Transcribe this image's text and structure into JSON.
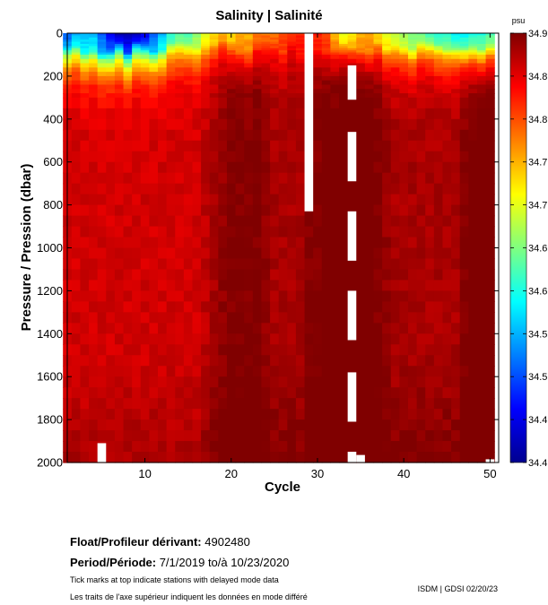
{
  "chart_data": {
    "type": "heatmap",
    "title": "Salinity | Salinité",
    "xlabel": "Cycle",
    "ylabel": "Pressure / Pression (dbar)",
    "xlim": [
      1,
      51
    ],
    "ylim": [
      0,
      2000
    ],
    "y_inverted": true,
    "xticks": [
      10,
      20,
      30,
      40,
      50
    ],
    "yticks": [
      0,
      200,
      400,
      600,
      800,
      1000,
      1200,
      1400,
      1600,
      1800,
      2000
    ],
    "colorbar": {
      "unit": "psu",
      "min": 34.4,
      "max": 34.9,
      "tick_values": [
        34.4,
        34.45,
        34.5,
        34.55,
        34.6,
        34.65,
        34.7,
        34.75,
        34.8,
        34.85,
        34.9
      ],
      "tick_labels": [
        "34.4",
        "34.4",
        "34.5",
        "34.5",
        "34.6",
        "34.6",
        "34.7",
        "34.7",
        "34.8",
        "34.8",
        "34.9"
      ]
    },
    "surface_profile": [
      34.5,
      34.55,
      34.55,
      34.55,
      34.5,
      34.45,
      34.42,
      34.42,
      34.42,
      34.45,
      34.5,
      34.55,
      34.6,
      34.62,
      34.62,
      34.65,
      34.7,
      34.72,
      34.75,
      34.72,
      34.75,
      34.75,
      34.78,
      34.78,
      34.78,
      34.8,
      34.82,
      34.82,
      34.85,
      34.82,
      34.8,
      34.75,
      34.7,
      34.72,
      34.75,
      34.75,
      34.72,
      34.7,
      34.68,
      34.66,
      34.64,
      34.64,
      34.62,
      34.6,
      34.6,
      34.58,
      34.58,
      34.6,
      34.6,
      34.62
    ],
    "deep_profile": [
      34.86,
      34.86,
      34.86,
      34.86,
      34.86,
      34.86,
      34.86,
      34.86,
      34.86,
      34.86,
      34.86,
      34.86,
      34.86,
      34.86,
      34.86,
      34.86,
      34.87,
      34.88,
      34.89,
      34.9,
      34.9,
      34.9,
      34.9,
      34.89,
      34.88,
      34.88,
      34.88,
      34.88,
      34.9,
      34.9,
      34.91,
      34.91,
      34.92,
      34.92,
      34.92,
      34.92,
      34.9,
      34.89,
      34.88,
      34.88,
      34.88,
      34.88,
      34.88,
      34.88,
      34.88,
      34.88,
      34.9,
      34.91,
      34.92,
      34.92
    ],
    "missing": [
      {
        "cycle": 29,
        "pmin": 0,
        "pmax": 830
      },
      {
        "cycle": 34,
        "pmin": 150,
        "pmax": 310
      },
      {
        "cycle": 34,
        "pmin": 460,
        "pmax": 690
      },
      {
        "cycle": 34,
        "pmin": 830,
        "pmax": 1060
      },
      {
        "cycle": 34,
        "pmin": 1200,
        "pmax": 1430
      },
      {
        "cycle": 34,
        "pmin": 1580,
        "pmax": 1810
      },
      {
        "cycle": 34,
        "pmin": 1950,
        "pmax": 2000
      },
      {
        "cycle": 35,
        "pmin": 1965,
        "pmax": 2000
      },
      {
        "cycle": 5,
        "pmin": 1910,
        "pmax": 2000
      },
      {
        "cycle": 50,
        "pmin": 1985,
        "pmax": 2000
      }
    ]
  },
  "float": {
    "label": "Float/Profileur dérivant:",
    "value": "4902480"
  },
  "period": {
    "label": "Period/Période:",
    "start": "7/1/2019",
    "to": "to/à",
    "end": "10/23/2020"
  },
  "notes": {
    "en": "Tick marks at top indicate stations with delayed mode data",
    "fr": "Les traits de l'axe supérieur indiquent les données en mode différé"
  },
  "stamp": "ISDM | GDSI 02/20/23"
}
